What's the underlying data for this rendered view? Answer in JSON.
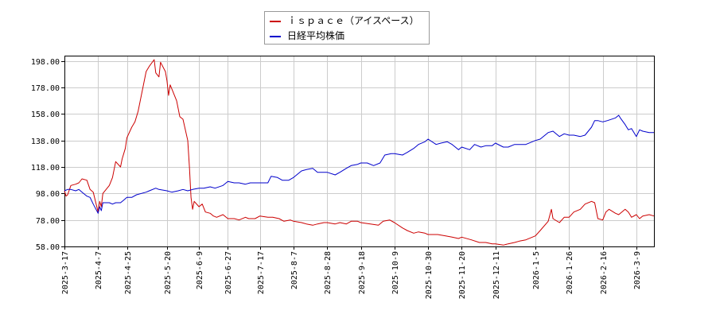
{
  "chart_data": {
    "type": "line",
    "title": "",
    "xlabel": "",
    "ylabel": "",
    "ylim": [
      58,
      202
    ],
    "y_ticks": [
      "198.00",
      "178.00",
      "158.00",
      "138.00",
      "118.00",
      "98.00",
      "78.00",
      "58.00"
    ],
    "y_tick_values": [
      198,
      178,
      158,
      138,
      118,
      98,
      78,
      58
    ],
    "x_ticks": [
      "2025-3-17",
      "2025-4-7",
      "2025-4-25",
      "2025-5-20",
      "2025-6-9",
      "2025-6-27",
      "2025-7-17",
      "2025-8-7",
      "2025-8-28",
      "2025-9-18",
      "2025-10-9",
      "2025-10-30",
      "2025-11-20",
      "2025-12-11",
      "2026-1-5",
      "2026-1-26",
      "2026-2-16",
      "2026-3-9"
    ],
    "x_range": [
      "2025-3-17",
      "2026-3-20"
    ],
    "grid": true,
    "legend_position": "top-center",
    "series": [
      {
        "name": "ｉｓｐａｃｅ（アイスペース）",
        "color": "#cc0000",
        "points": [
          [
            "2025-3-17",
            100
          ],
          [
            "2025-3-18",
            96
          ],
          [
            "2025-3-19",
            97
          ],
          [
            "2025-3-21",
            104
          ],
          [
            "2025-3-24",
            105
          ],
          [
            "2025-3-26",
            106
          ],
          [
            "2025-3-28",
            109
          ],
          [
            "2025-3-31",
            108
          ],
          [
            "2025-4-2",
            101
          ],
          [
            "2025-4-4",
            99
          ],
          [
            "2025-4-7",
            84
          ],
          [
            "2025-4-8",
            92
          ],
          [
            "2025-4-9",
            88
          ],
          [
            "2025-4-10",
            98
          ],
          [
            "2025-4-14",
            104
          ],
          [
            "2025-4-16",
            110
          ],
          [
            "2025-4-18",
            122
          ],
          [
            "2025-4-21",
            118
          ],
          [
            "2025-4-22",
            124
          ],
          [
            "2025-4-24",
            132
          ],
          [
            "2025-4-25",
            140
          ],
          [
            "2025-4-28",
            148
          ],
          [
            "2025-4-30",
            152
          ],
          [
            "2025-5-2",
            160
          ],
          [
            "2025-5-7",
            190
          ],
          [
            "2025-5-9",
            194
          ],
          [
            "2025-5-12",
            199
          ],
          [
            "2025-5-13",
            189
          ],
          [
            "2025-5-15",
            186
          ],
          [
            "2025-5-16",
            197
          ],
          [
            "2025-5-19",
            190
          ],
          [
            "2025-5-20",
            183
          ],
          [
            "2025-5-21",
            172
          ],
          [
            "2025-5-22",
            180
          ],
          [
            "2025-5-26",
            168
          ],
          [
            "2025-5-28",
            156
          ],
          [
            "2025-5-30",
            154
          ],
          [
            "2025-6-2",
            138
          ],
          [
            "2025-6-3",
            118
          ],
          [
            "2025-6-4",
            95
          ],
          [
            "2025-6-5",
            86
          ],
          [
            "2025-6-6",
            92
          ],
          [
            "2025-6-9",
            88
          ],
          [
            "2025-6-11",
            90
          ],
          [
            "2025-6-13",
            84
          ],
          [
            "2025-6-16",
            83
          ],
          [
            "2025-6-18",
            81
          ],
          [
            "2025-6-20",
            80
          ],
          [
            "2025-6-24",
            82
          ],
          [
            "2025-6-27",
            79
          ],
          [
            "2025-7-1",
            79
          ],
          [
            "2025-7-4",
            78
          ],
          [
            "2025-7-8",
            80
          ],
          [
            "2025-7-10",
            79
          ],
          [
            "2025-7-14",
            79
          ],
          [
            "2025-7-17",
            81
          ],
          [
            "2025-7-22",
            80
          ],
          [
            "2025-7-25",
            80
          ],
          [
            "2025-7-29",
            79
          ],
          [
            "2025-8-1",
            77
          ],
          [
            "2025-8-5",
            78
          ],
          [
            "2025-8-7",
            77
          ],
          [
            "2025-8-12",
            76
          ],
          [
            "2025-8-15",
            75
          ],
          [
            "2025-8-19",
            74
          ],
          [
            "2025-8-22",
            75
          ],
          [
            "2025-8-26",
            76
          ],
          [
            "2025-8-28",
            76
          ],
          [
            "2025-9-2",
            75
          ],
          [
            "2025-9-5",
            76
          ],
          [
            "2025-9-9",
            75
          ],
          [
            "2025-9-12",
            77
          ],
          [
            "2025-9-16",
            77
          ],
          [
            "2025-9-18",
            76
          ],
          [
            "2025-9-24",
            75
          ],
          [
            "2025-9-29",
            74
          ],
          [
            "2025-10-2",
            77
          ],
          [
            "2025-10-6",
            78
          ],
          [
            "2025-10-9",
            76
          ],
          [
            "2025-10-14",
            72
          ],
          [
            "2025-10-17",
            70
          ],
          [
            "2025-10-21",
            68
          ],
          [
            "2025-10-24",
            69
          ],
          [
            "2025-10-28",
            68
          ],
          [
            "2025-10-30",
            67
          ],
          [
            "2025-11-5",
            67
          ],
          [
            "2025-11-10",
            66
          ],
          [
            "2025-11-14",
            65
          ],
          [
            "2025-11-18",
            64
          ],
          [
            "2025-11-20",
            65
          ],
          [
            "2025-11-26",
            63
          ],
          [
            "2025-12-1",
            61
          ],
          [
            "2025-12-5",
            61
          ],
          [
            "2025-12-9",
            60
          ],
          [
            "2025-12-11",
            60
          ],
          [
            "2025-12-16",
            59
          ],
          [
            "2025-12-19",
            60
          ],
          [
            "2025-12-23",
            61
          ],
          [
            "2025-12-26",
            62
          ],
          [
            "2025-12-30",
            63
          ],
          [
            "2026-1-5",
            66
          ],
          [
            "2026-1-8",
            70
          ],
          [
            "2026-1-13",
            77
          ],
          [
            "2026-1-15",
            86
          ],
          [
            "2026-1-16",
            79
          ],
          [
            "2026-1-20",
            76
          ],
          [
            "2026-1-23",
            80
          ],
          [
            "2026-1-26",
            80
          ],
          [
            "2026-1-29",
            84
          ],
          [
            "2026-2-2",
            86
          ],
          [
            "2026-2-5",
            90
          ],
          [
            "2026-2-9",
            92
          ],
          [
            "2026-2-11",
            91
          ],
          [
            "2026-2-13",
            79
          ],
          [
            "2026-2-16",
            78
          ],
          [
            "2026-2-18",
            84
          ],
          [
            "2026-2-20",
            86
          ],
          [
            "2026-2-24",
            83
          ],
          [
            "2026-2-26",
            82
          ],
          [
            "2026-3-2",
            86
          ],
          [
            "2026-3-4",
            84
          ],
          [
            "2026-3-6",
            80
          ],
          [
            "2026-3-9",
            82
          ],
          [
            "2026-3-11",
            79
          ],
          [
            "2026-3-13",
            81
          ],
          [
            "2026-3-17",
            82
          ],
          [
            "2026-3-20",
            81
          ]
        ]
      },
      {
        "name": "日経平均株価",
        "color": "#0000cc",
        "points": [
          [
            "2025-3-17",
            100
          ],
          [
            "2025-3-19",
            101
          ],
          [
            "2025-3-21",
            101
          ],
          [
            "2025-3-24",
            100
          ],
          [
            "2025-3-26",
            101
          ],
          [
            "2025-3-28",
            99
          ],
          [
            "2025-3-31",
            96
          ],
          [
            "2025-4-2",
            95
          ],
          [
            "2025-4-4",
            90
          ],
          [
            "2025-4-7",
            83
          ],
          [
            "2025-4-8",
            88
          ],
          [
            "2025-4-9",
            85
          ],
          [
            "2025-4-10",
            91
          ],
          [
            "2025-4-14",
            91
          ],
          [
            "2025-4-16",
            90
          ],
          [
            "2025-4-18",
            91
          ],
          [
            "2025-4-21",
            91
          ],
          [
            "2025-4-23",
            93
          ],
          [
            "2025-4-25",
            95
          ],
          [
            "2025-4-28",
            95
          ],
          [
            "2025-5-1",
            97
          ],
          [
            "2025-5-7",
            99
          ],
          [
            "2025-5-9",
            100
          ],
          [
            "2025-5-13",
            102
          ],
          [
            "2025-5-15",
            101
          ],
          [
            "2025-5-20",
            100
          ],
          [
            "2025-5-23",
            99
          ],
          [
            "2025-5-27",
            100
          ],
          [
            "2025-5-30",
            101
          ],
          [
            "2025-6-2",
            100
          ],
          [
            "2025-6-5",
            101
          ],
          [
            "2025-6-9",
            102
          ],
          [
            "2025-6-12",
            102
          ],
          [
            "2025-6-16",
            103
          ],
          [
            "2025-6-19",
            102
          ],
          [
            "2025-6-24",
            104
          ],
          [
            "2025-6-27",
            107
          ],
          [
            "2025-7-1",
            106
          ],
          [
            "2025-7-4",
            106
          ],
          [
            "2025-7-8",
            105
          ],
          [
            "2025-7-11",
            106
          ],
          [
            "2025-7-15",
            106
          ],
          [
            "2025-7-17",
            106
          ],
          [
            "2025-7-22",
            106
          ],
          [
            "2025-7-24",
            111
          ],
          [
            "2025-7-28",
            110
          ],
          [
            "2025-7-31",
            108
          ],
          [
            "2025-8-4",
            108
          ],
          [
            "2025-8-7",
            110
          ],
          [
            "2025-8-12",
            115
          ],
          [
            "2025-8-15",
            116
          ],
          [
            "2025-8-19",
            117
          ],
          [
            "2025-8-22",
            114
          ],
          [
            "2025-8-26",
            114
          ],
          [
            "2025-8-28",
            114
          ],
          [
            "2025-9-2",
            112
          ],
          [
            "2025-9-5",
            114
          ],
          [
            "2025-9-9",
            117
          ],
          [
            "2025-9-12",
            119
          ],
          [
            "2025-9-16",
            120
          ],
          [
            "2025-9-18",
            121
          ],
          [
            "2025-9-22",
            121
          ],
          [
            "2025-9-26",
            119
          ],
          [
            "2025-9-30",
            121
          ],
          [
            "2025-10-3",
            127
          ],
          [
            "2025-10-7",
            128
          ],
          [
            "2025-10-9",
            128
          ],
          [
            "2025-10-14",
            127
          ],
          [
            "2025-10-17",
            129
          ],
          [
            "2025-10-21",
            132
          ],
          [
            "2025-10-24",
            135
          ],
          [
            "2025-10-28",
            137
          ],
          [
            "2025-10-30",
            139
          ],
          [
            "2025-11-4",
            135
          ],
          [
            "2025-11-7",
            136
          ],
          [
            "2025-11-11",
            137
          ],
          [
            "2025-11-14",
            135
          ],
          [
            "2025-11-18",
            131
          ],
          [
            "2025-11-20",
            133
          ],
          [
            "2025-11-25",
            131
          ],
          [
            "2025-11-28",
            135
          ],
          [
            "2025-12-2",
            133
          ],
          [
            "2025-12-5",
            134
          ],
          [
            "2025-12-9",
            134
          ],
          [
            "2025-12-11",
            136
          ],
          [
            "2025-12-16",
            133
          ],
          [
            "2025-12-19",
            133
          ],
          [
            "2025-12-23",
            135
          ],
          [
            "2025-12-26",
            135
          ],
          [
            "2025-12-30",
            135
          ],
          [
            "2026-1-5",
            138
          ],
          [
            "2026-1-8",
            139
          ],
          [
            "2026-1-13",
            144
          ],
          [
            "2026-1-16",
            145
          ],
          [
            "2026-1-20",
            141
          ],
          [
            "2026-1-23",
            143
          ],
          [
            "2026-1-26",
            142
          ],
          [
            "2026-1-29",
            142
          ],
          [
            "2026-2-2",
            141
          ],
          [
            "2026-2-5",
            142
          ],
          [
            "2026-2-9",
            148
          ],
          [
            "2026-2-11",
            153
          ],
          [
            "2026-2-13",
            153
          ],
          [
            "2026-2-16",
            152
          ],
          [
            "2026-2-19",
            153
          ],
          [
            "2026-2-24",
            155
          ],
          [
            "2026-2-26",
            157
          ],
          [
            "2026-2-27",
            155
          ],
          [
            "2026-3-2",
            150
          ],
          [
            "2026-3-4",
            146
          ],
          [
            "2026-3-6",
            147
          ],
          [
            "2026-3-9",
            141
          ],
          [
            "2026-3-11",
            146
          ],
          [
            "2026-3-13",
            145
          ],
          [
            "2026-3-17",
            144
          ],
          [
            "2026-3-20",
            144
          ]
        ]
      }
    ]
  }
}
